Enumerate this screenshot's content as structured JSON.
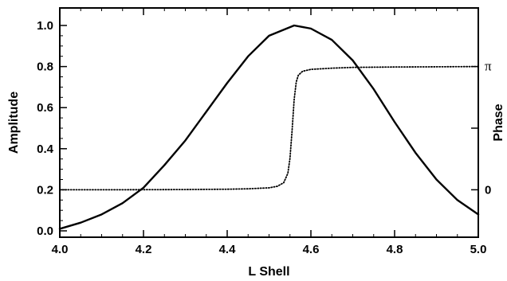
{
  "chart_data": {
    "type": "line",
    "xlabel": "L Shell",
    "ylabel_left": "Amplitude",
    "ylabel_right": "Phase",
    "xlim": [
      4.0,
      5.0
    ],
    "ylim_left": [
      0.0,
      1.0
    ],
    "ylim_right_labels": [
      {
        "label": "0",
        "value": 0
      },
      {
        "label": "π",
        "value": 3.14159
      }
    ],
    "x_ticks": [
      "4.0",
      "4.2",
      "4.4",
      "4.6",
      "4.8",
      "5.0"
    ],
    "y_ticks_left": [
      "0.0",
      "0.2",
      "0.4",
      "0.6",
      "0.8",
      "1.0"
    ],
    "series": [
      {
        "style": "solid",
        "axis": "left",
        "x": [
          4.0,
          4.05,
          4.1,
          4.15,
          4.2,
          4.25,
          4.3,
          4.35,
          4.4,
          4.45,
          4.5,
          4.56,
          4.6,
          4.65,
          4.7,
          4.75,
          4.8,
          4.85,
          4.9,
          4.95,
          5.0
        ],
        "y": [
          0.01,
          0.04,
          0.08,
          0.135,
          0.21,
          0.32,
          0.44,
          0.58,
          0.72,
          0.85,
          0.95,
          1.0,
          0.985,
          0.93,
          0.83,
          0.69,
          0.53,
          0.38,
          0.25,
          0.15,
          0.08
        ]
      },
      {
        "style": "dotted",
        "axis": "right",
        "x": [
          4.0,
          4.1,
          4.2,
          4.3,
          4.4,
          4.45,
          4.5,
          4.52,
          4.535,
          4.545,
          4.55,
          4.555,
          4.56,
          4.565,
          4.57,
          4.58,
          4.6,
          4.65,
          4.7,
          4.8,
          4.9,
          5.0
        ],
        "y": [
          0.0,
          0.0,
          0.002,
          0.006,
          0.014,
          0.025,
          0.05,
          0.09,
          0.18,
          0.42,
          0.8,
          1.5,
          2.3,
          2.75,
          2.92,
          3.02,
          3.07,
          3.1,
          3.12,
          3.13,
          3.135,
          3.14159
        ]
      }
    ]
  },
  "style": {
    "background": "#ffffff",
    "line_color": "#000000"
  }
}
